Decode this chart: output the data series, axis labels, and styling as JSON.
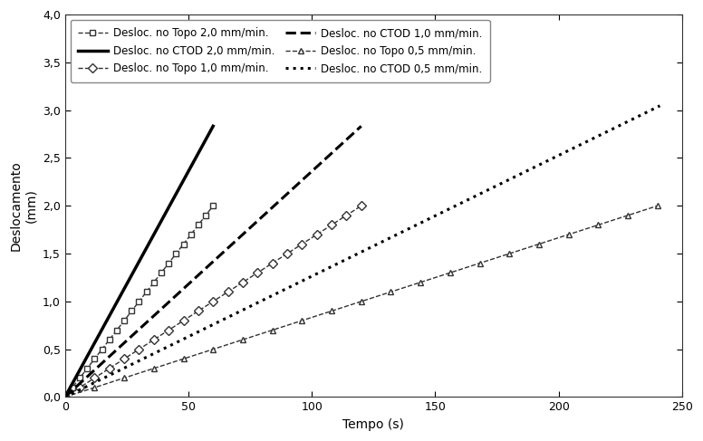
{
  "xlabel": "Tempo (s)",
  "ylabel": "Deslocamento\n(mm)",
  "xlim": [
    0,
    250
  ],
  "ylim": [
    0,
    4.0
  ],
  "yticks": [
    0.0,
    0.5,
    1.0,
    1.5,
    2.0,
    2.5,
    3.0,
    3.5,
    4.0
  ],
  "xticks": [
    0,
    50,
    100,
    150,
    200,
    250
  ],
  "lines": [
    {
      "label": "Desloc. no Topo 2,0 mm/min.",
      "rate_mm_per_s": 0.03333,
      "t_end": 60,
      "linestyle": "--",
      "color": "#333333",
      "marker": "s",
      "markersize": 5,
      "markerfacecolor": "white",
      "markeredgecolor": "#333333",
      "linewidth": 1.0,
      "n_markers": 21
    },
    {
      "label": "Desloc. no Topo 1,0 mm/min.",
      "rate_mm_per_s": 0.016667,
      "t_end": 120,
      "linestyle": "--",
      "color": "#333333",
      "marker": "D",
      "markersize": 5,
      "markerfacecolor": "white",
      "markeredgecolor": "#333333",
      "linewidth": 1.0,
      "n_markers": 21
    },
    {
      "label": "Desloc. no Topo 0,5 mm/min.",
      "rate_mm_per_s": 0.008333,
      "t_end": 240,
      "linestyle": "--",
      "color": "#333333",
      "marker": "^",
      "markersize": 5,
      "markerfacecolor": "white",
      "markeredgecolor": "#333333",
      "linewidth": 1.0,
      "n_markers": 21
    },
    {
      "label": "Desloc. no CTOD 2,0 mm/min.",
      "rate_mm_per_s": 0.04722,
      "t_end": 60,
      "linestyle": "-",
      "color": "#000000",
      "marker": "None",
      "markersize": 0,
      "markerfacecolor": "none",
      "markeredgecolor": "none",
      "linewidth": 2.5,
      "n_markers": 0
    },
    {
      "label": "Desloc. no CTOD 1,0 mm/min.",
      "rate_mm_per_s": 0.02361,
      "t_end": 120,
      "linestyle": "--",
      "color": "#000000",
      "marker": "None",
      "markersize": 0,
      "markerfacecolor": "none",
      "markeredgecolor": "none",
      "linewidth": 2.2,
      "n_markers": 0
    },
    {
      "label": "Desloc. no CTOD 0,5 mm/min.",
      "rate_mm_per_s": 0.01264,
      "t_end": 241,
      "linestyle": ":",
      "color": "#000000",
      "marker": "None",
      "markersize": 0,
      "markerfacecolor": "none",
      "markeredgecolor": "none",
      "linewidth": 2.2,
      "n_markers": 0
    }
  ],
  "legend_entries": [
    {
      "label": "Desloc. no Topo 2,0 mm/min.",
      "linestyle": "--",
      "color": "#333333",
      "marker": "s",
      "markersize": 5,
      "markerfacecolor": "white",
      "linewidth": 1.0
    },
    {
      "label": "Desloc. no CTOD 2,0 mm/min.",
      "linestyle": "-",
      "color": "#000000",
      "marker": "None",
      "markersize": 0,
      "markerfacecolor": "none",
      "linewidth": 2.5
    },
    {
      "label": "Desloc. no Topo 1,0 mm/min.",
      "linestyle": "--",
      "color": "#333333",
      "marker": "D",
      "markersize": 5,
      "markerfacecolor": "white",
      "linewidth": 1.0
    },
    {
      "label": "Desloc. no CTOD 1,0 mm/min.",
      "linestyle": "--",
      "color": "#000000",
      "marker": "None",
      "markersize": 0,
      "markerfacecolor": "none",
      "linewidth": 2.2
    },
    {
      "label": "Desloc. no Topo 0,5 mm/min.",
      "linestyle": "--",
      "color": "#333333",
      "marker": "^",
      "markersize": 5,
      "markerfacecolor": "white",
      "linewidth": 1.0
    },
    {
      "label": "Desloc. no CTOD 0,5 mm/min.",
      "linestyle": ":",
      "color": "#000000",
      "marker": "None",
      "markersize": 0,
      "markerfacecolor": "none",
      "linewidth": 2.2
    }
  ]
}
